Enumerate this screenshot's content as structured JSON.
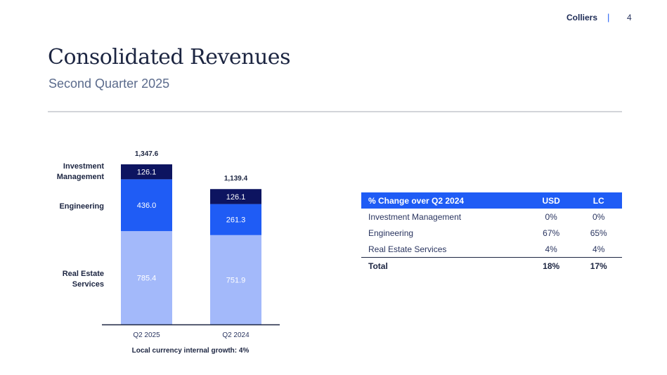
{
  "header": {
    "brand": "Colliers",
    "separator": "|",
    "page_number": "4"
  },
  "title": "Consolidated Revenues",
  "subtitle": "Second Quarter 2025",
  "row_labels": {
    "investment_management": [
      "Investment",
      "Management"
    ],
    "engineering": "Engineering",
    "real_estate_services": [
      "Real Estate",
      "Services"
    ]
  },
  "colors": {
    "investment_management": "#0d1460",
    "engineering": "#1f5cf5",
    "real_estate_services": "#a3b9fa",
    "accent": "#1f5cf5",
    "title": "#1c2541"
  },
  "chart_data": {
    "type": "bar",
    "stacked": true,
    "categories": [
      "Q2 2025",
      "Q2 2024"
    ],
    "series": [
      {
        "name": "Real Estate Services",
        "values": [
          785.4,
          751.9
        ],
        "labels": [
          "785.4",
          "751.9"
        ]
      },
      {
        "name": "Engineering",
        "values": [
          436.0,
          261.3
        ],
        "labels": [
          "436.0",
          "261.3"
        ]
      },
      {
        "name": "Investment Management",
        "values": [
          126.1,
          126.1
        ],
        "labels": [
          "126.1",
          "126.1"
        ]
      }
    ],
    "totals": [
      1347.6,
      1139.4
    ],
    "total_labels": [
      "1,347.6",
      "1,139.4"
    ],
    "ylim": [
      0,
      1347.6
    ],
    "grid": false,
    "footnote": "Local currency internal growth: 4%"
  },
  "table": {
    "headers": [
      "% Change over Q2 2024",
      "USD",
      "LC"
    ],
    "rows": [
      [
        "Investment Management",
        "0%",
        "0%"
      ],
      [
        "Engineering",
        "67%",
        "65%"
      ],
      [
        "Real Estate Services",
        "4%",
        "4%"
      ]
    ],
    "total": [
      "Total",
      "18%",
      "17%"
    ]
  }
}
